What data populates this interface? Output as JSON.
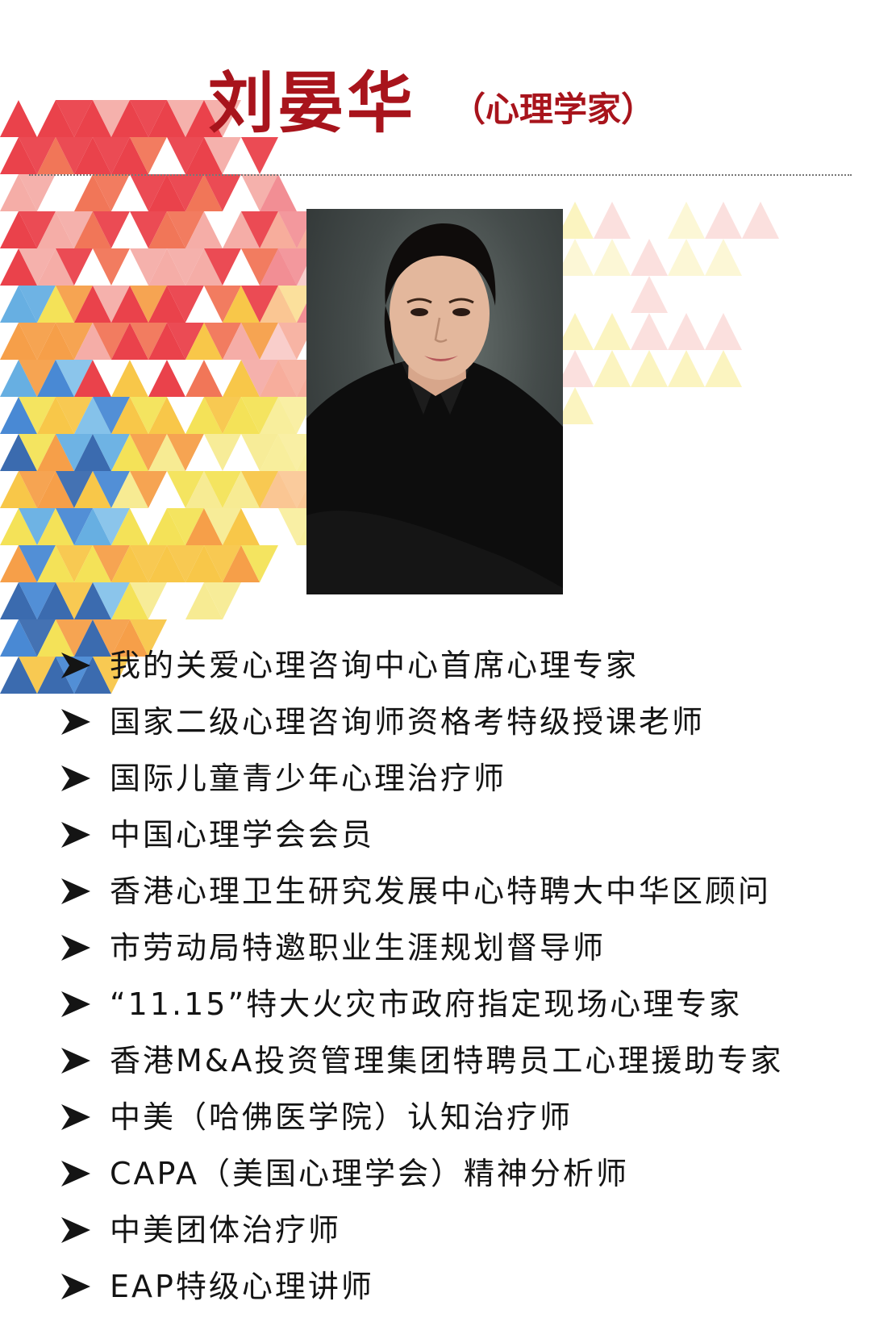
{
  "header": {
    "name": "刘晏华",
    "role": "（心理学家）"
  },
  "portrait": {
    "subject": "portrait-photo"
  },
  "credentials": [
    "我的关爱心理咨询中心首席心理专家",
    "国家二级心理咨询师资格考特级授课老师",
    "国际儿童青少年心理治疗师",
    "中国心理学会会员",
    "香港心理卫生研究发展中心特聘大中华区顾问",
    "市劳动局特邀职业生涯规划督导师",
    "“11.15”特大火灾市政府指定现场心理专家",
    "香港M&A投资管理集团特聘员工心理援助专家",
    "中美（哈佛医学院）认知治疗师",
    "CAPA（美国心理学会）精神分析师",
    "中美团体治疗师",
    "EAP特级心理讲师"
  ],
  "colors": {
    "title": "#a8141c",
    "text": "#141414",
    "bullet": "#141414",
    "palette": [
      "#e8323c",
      "#f06a4a",
      "#f5973a",
      "#f7c23a",
      "#f3e04a",
      "#f6e98a",
      "#f4a6a0",
      "#3a7fd0",
      "#2a5ea8",
      "#5aa8e0",
      "#7bbde8",
      "#ffffff"
    ]
  },
  "icons": {
    "bullet": "arrowhead-bullet-icon"
  }
}
